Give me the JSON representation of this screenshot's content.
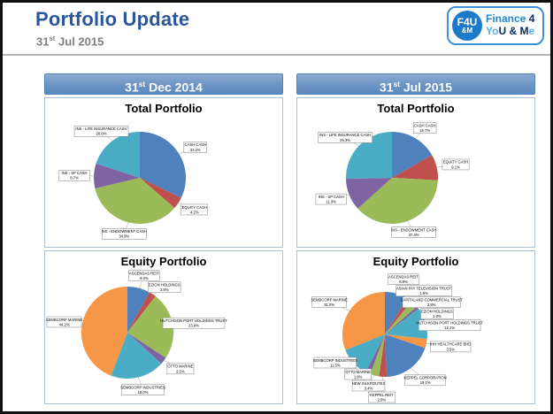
{
  "header": {
    "title": "Portfolio Update",
    "date": {
      "day": "31",
      "suffix": "st",
      "rest": " Jul 2015"
    }
  },
  "logo": {
    "icon_top": "F4U",
    "icon_bottom": "&M",
    "line1_a": "Finance",
    "line1_b": "4",
    "line2_a": "Yo",
    "line2_b": "U & M",
    "line2_c": "e"
  },
  "columns": [
    {
      "day": "31",
      "suffix": "st",
      "rest": " Dec 2014"
    },
    {
      "day": "31",
      "suffix": "st",
      "rest": " Jul 2015"
    }
  ],
  "colors": {
    "accent_blue": "#4F81BD",
    "title_blue": "#2B579A",
    "subtitle_gray": "#7F7F7F",
    "column_bar": "#6C94C4",
    "panel_border": "#AEBFD8",
    "logo_blue": "#1E88D2",
    "logo_navy": "#0A2A66"
  },
  "chart_data": [
    {
      "type": "pie",
      "title": "Total Portfolio",
      "column": "31st Dec 2014",
      "legend_position": "callout-labels",
      "labels": [
        "CASH CASH",
        "EQUITY CASH",
        "INS - ENDOWMENT CASH",
        "INS - SP CASH",
        "INS - LIFE INSURANCE CASH"
      ],
      "values": [
        32.2,
        4.2,
        34.9,
        8.7,
        20.0
      ],
      "colors": [
        "#4F81BD",
        "#C0504D",
        "#9BBB59",
        "#8064A2",
        "#4BACC6"
      ]
    },
    {
      "type": "pie",
      "title": "Total Portfolio",
      "column": "31st Jul 2015",
      "legend_position": "callout-labels",
      "labels": [
        "CASH CASH",
        "EQUITY CASH",
        "INS - ENDOWMENT CASH",
        "INS - SP CASH",
        "INS - LIFE INSURANCE CASH"
      ],
      "values": [
        16.7,
        9.1,
        37.4,
        11.3,
        25.3
      ],
      "colors": [
        "#4F81BD",
        "#C0504D",
        "#9BBB59",
        "#8064A2",
        "#4BACC6"
      ]
    },
    {
      "type": "pie",
      "title": "Equity Portfolio",
      "column": "31st Dec 2014",
      "legend_position": "callout-labels",
      "labels": [
        "ASCENDAS REIT",
        "EZION HOLDINGS",
        "HUTCHISON PORT HOLDINGS TRUST",
        "OTTO MARINE",
        "SEMBCORP INDUSTRIES",
        "SEMBCORP MARINE"
      ],
      "values": [
        8.0,
        2.5,
        23.8,
        2.5,
        19.0,
        44.2
      ],
      "colors": [
        "#4F81BD",
        "#C0504D",
        "#9BBB59",
        "#8064A2",
        "#4BACC6",
        "#F79646"
      ]
    },
    {
      "type": "pie",
      "title": "Equity Portfolio",
      "column": "31st Jul 2015",
      "legend_position": "callout-labels",
      "labels": [
        "ASCENDAS REIT",
        "ASIAN PAY TELEVISION TRUST",
        "CAPITALAND COMMERCIAL TRUST",
        "EZION HOLDINGS",
        "HUTCHISON PORT HOLDINGS TRUST",
        "IHH HEALTHCARE BHD",
        "KEPPEL CORPORATION",
        "KEPPEL REIT",
        "NEW SILKROUTES",
        "OTTO MARINE",
        "SEMBCORP INDUSTRIES",
        "SEMBCORP MARINE"
      ],
      "values": [
        8.9,
        1.9,
        2.8,
        1.0,
        12.1,
        3.5,
        19.1,
        2.9,
        3.4,
        1.9,
        11.5,
        31.0
      ],
      "colors": [
        "#4F81BD",
        "#C0504D",
        "#9BBB59",
        "#8064A2",
        "#4BACC6",
        "#F79646",
        "#4F81BD",
        "#C0504D",
        "#9BBB59",
        "#8064A2",
        "#4BACC6",
        "#F79646"
      ]
    }
  ]
}
